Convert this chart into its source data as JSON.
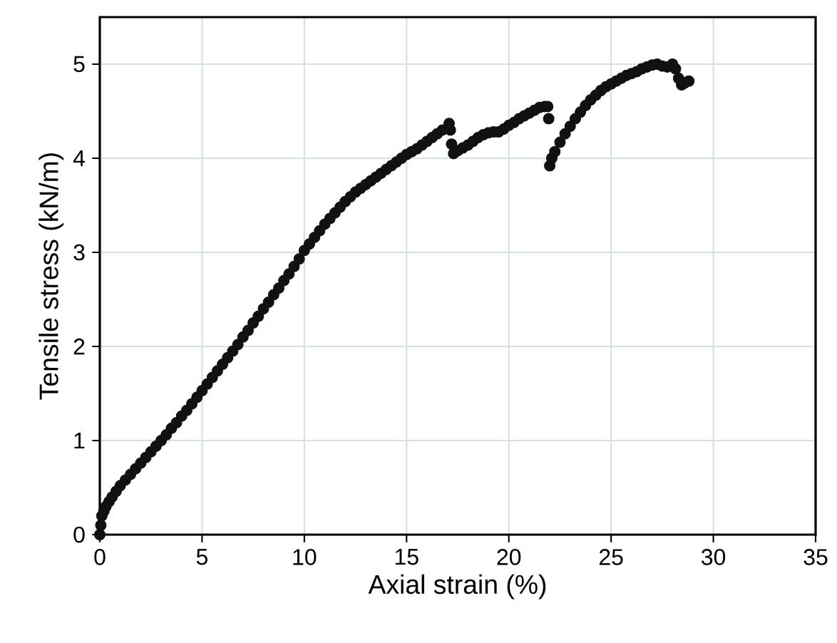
{
  "chart_data": {
    "type": "scatter",
    "xlabel": "Axial strain (%)",
    "ylabel": "Tensile stress (kN/m)",
    "xlim": [
      0,
      35
    ],
    "ylim": [
      0,
      5.5
    ],
    "xticks": [
      0,
      5,
      10,
      15,
      20,
      25,
      30,
      35
    ],
    "yticks": [
      0,
      1,
      2,
      3,
      4,
      5
    ],
    "grid": true,
    "series": [
      {
        "color": "#111111",
        "x": [
          0,
          0.05,
          0.1,
          0.2,
          0.3,
          0.45,
          0.6,
          0.8,
          1,
          1.25,
          1.5,
          1.75,
          2,
          2.25,
          2.5,
          2.75,
          3,
          3.25,
          3.5,
          3.75,
          4,
          4.25,
          4.5,
          4.75,
          5,
          5.25,
          5.5,
          5.75,
          6,
          6.25,
          6.5,
          6.75,
          7,
          7.25,
          7.5,
          7.75,
          8,
          8.25,
          8.5,
          8.75,
          9,
          9.25,
          9.5,
          9.75,
          10,
          10.25,
          10.5,
          10.75,
          11,
          11.25,
          11.5,
          11.75,
          12,
          12.25,
          12.5,
          12.75,
          13,
          13.25,
          13.5,
          13.75,
          14,
          14.25,
          14.5,
          14.75,
          15,
          15.25,
          15.5,
          15.75,
          16,
          16.25,
          16.5,
          16.75,
          17.08,
          17.14,
          17.2,
          17.3,
          17.5,
          17.75,
          18,
          18.25,
          18.5,
          18.75,
          19,
          19.25,
          19.5,
          19.75,
          20,
          20.25,
          20.5,
          20.75,
          21,
          21.25,
          21.5,
          21.75,
          21.9,
          21.95,
          22,
          22.1,
          22.25,
          22.5,
          22.75,
          23,
          23.25,
          23.5,
          23.75,
          24,
          24.25,
          24.5,
          24.75,
          25,
          25.25,
          25.5,
          25.75,
          26,
          26.25,
          26.5,
          26.75,
          27,
          27.25,
          27.5,
          27.75,
          28,
          28.15,
          28.3,
          28.45,
          28.6,
          28.8
        ],
        "values": [
          0,
          0.1,
          0.2,
          0.25,
          0.3,
          0.35,
          0.4,
          0.46,
          0.52,
          0.58,
          0.64,
          0.7,
          0.76,
          0.82,
          0.88,
          0.94,
          1.0,
          1.06,
          1.13,
          1.19,
          1.26,
          1.32,
          1.39,
          1.46,
          1.53,
          1.6,
          1.67,
          1.74,
          1.81,
          1.88,
          1.95,
          2.02,
          2.1,
          2.17,
          2.25,
          2.32,
          2.4,
          2.47,
          2.55,
          2.62,
          2.7,
          2.77,
          2.85,
          2.93,
          3.02,
          3.09,
          3.16,
          3.23,
          3.3,
          3.36,
          3.42,
          3.48,
          3.54,
          3.59,
          3.64,
          3.68,
          3.72,
          3.76,
          3.8,
          3.84,
          3.88,
          3.92,
          3.96,
          4.0,
          4.04,
          4.07,
          4.1,
          4.14,
          4.18,
          4.22,
          4.26,
          4.3,
          4.37,
          4.3,
          4.15,
          4.05,
          4.08,
          4.11,
          4.14,
          4.18,
          4.22,
          4.25,
          4.27,
          4.28,
          4.28,
          4.31,
          4.35,
          4.38,
          4.42,
          4.45,
          4.48,
          4.51,
          4.54,
          4.55,
          4.55,
          4.42,
          3.92,
          4.0,
          4.07,
          4.17,
          4.26,
          4.34,
          4.42,
          4.49,
          4.56,
          4.62,
          4.67,
          4.72,
          4.76,
          4.79,
          4.82,
          4.85,
          4.88,
          4.9,
          4.92,
          4.95,
          4.97,
          4.99,
          5.0,
          4.98,
          4.97,
          5.0,
          4.95,
          4.85,
          4.78,
          4.8,
          4.82
        ]
      }
    ]
  }
}
